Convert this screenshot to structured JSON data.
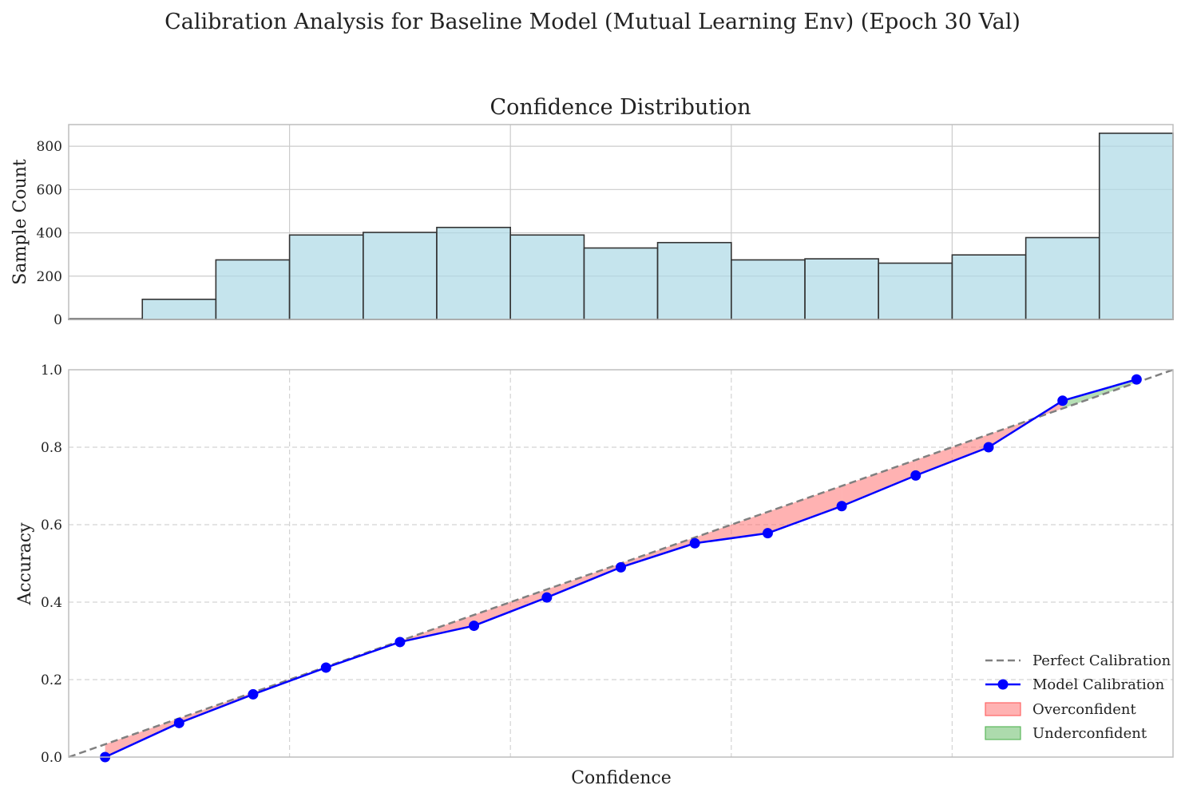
{
  "suptitle": "Calibration Analysis for Baseline Model (Mutual Learning Env) (Epoch 30 Val)",
  "chart_data": [
    {
      "type": "bar",
      "title": "Confidence Distribution",
      "ylabel": "Sample Count",
      "xlim": [
        0.0,
        1.0
      ],
      "ylim": [
        0,
        900
      ],
      "yticks": [
        "0",
        "200",
        "400",
        "600",
        "800"
      ],
      "grid": true,
      "bin_edges": [
        0.0,
        0.0667,
        0.1333,
        0.2,
        0.2667,
        0.3333,
        0.4,
        0.4667,
        0.5333,
        0.6,
        0.6667,
        0.7333,
        0.8,
        0.8667,
        0.9333,
        1.0
      ],
      "values": [
        3,
        93,
        275,
        390,
        402,
        425,
        390,
        330,
        355,
        275,
        280,
        260,
        298,
        378,
        860
      ],
      "color": "#add8e6"
    },
    {
      "type": "line",
      "ylabel": "Accuracy",
      "xlabel": "Confidence",
      "xlim": [
        0.0,
        1.0
      ],
      "ylim": [
        0.0,
        1.0
      ],
      "yticks": [
        "0.0",
        "0.2",
        "0.4",
        "0.6",
        "0.8",
        "1.0"
      ],
      "grid": true,
      "legend_position": "lower-right",
      "series": [
        {
          "name": "Perfect Calibration",
          "color": "#808080",
          "x": [
            0.0,
            1.0
          ],
          "y": [
            0.0,
            1.0
          ]
        },
        {
          "name": "Model Calibration",
          "color": "#0000ff",
          "x": [
            0.033,
            0.1,
            0.167,
            0.233,
            0.3,
            0.367,
            0.433,
            0.5,
            0.567,
            0.633,
            0.7,
            0.767,
            0.833,
            0.9,
            0.967
          ],
          "y": [
            0.0,
            0.088,
            0.162,
            0.231,
            0.297,
            0.339,
            0.412,
            0.49,
            0.552,
            0.578,
            0.648,
            0.727,
            0.8,
            0.92,
            0.975
          ]
        }
      ],
      "fills": [
        {
          "name": "Overconfident",
          "color": "#ff6666"
        },
        {
          "name": "Underconfident",
          "color": "#5cb85c"
        }
      ]
    }
  ]
}
